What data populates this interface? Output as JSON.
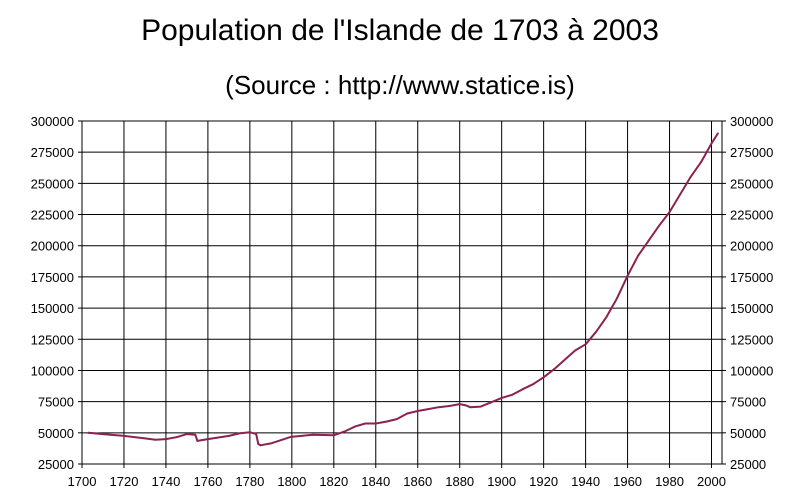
{
  "title": "Population de l'Islande de 1703 à 2003",
  "subtitle": "(Source : http://www.statice.is)",
  "chart_data": {
    "type": "line",
    "title": "Population de l'Islande de 1703 à 2003",
    "subtitle": "(Source : http://www.statice.is)",
    "xlabel": "",
    "ylabel": "",
    "xlim": [
      1700,
      2005
    ],
    "ylim": [
      25000,
      300000
    ],
    "x_ticks": [
      1700,
      1720,
      1740,
      1760,
      1780,
      1800,
      1820,
      1840,
      1860,
      1880,
      1900,
      1920,
      1940,
      1960,
      1980,
      2000
    ],
    "y_ticks": [
      25000,
      50000,
      75000,
      100000,
      125000,
      150000,
      175000,
      200000,
      225000,
      250000,
      275000,
      300000
    ],
    "grid": true,
    "legend": "none",
    "line_color": "#8b2252",
    "series": [
      {
        "x": [
          1703,
          1710,
          1720,
          1730,
          1735,
          1740,
          1745,
          1750,
          1754,
          1755,
          1760,
          1770,
          1775,
          1780,
          1783,
          1784,
          1785,
          1790,
          1800,
          1801,
          1810,
          1820,
          1825,
          1830,
          1835,
          1840,
          1845,
          1850,
          1855,
          1860,
          1865,
          1870,
          1875,
          1880,
          1883,
          1885,
          1890,
          1895,
          1900,
          1905,
          1910,
          1915,
          1920,
          1925,
          1930,
          1935,
          1940,
          1945,
          1950,
          1955,
          1960,
          1965,
          1970,
          1975,
          1980,
          1985,
          1990,
          1995,
          2000,
          2003
        ],
        "y": [
          50000,
          49000,
          47500,
          45500,
          44500,
          45000,
          46500,
          49000,
          48500,
          43500,
          45000,
          47500,
          49500,
          50500,
          49000,
          41000,
          40000,
          41500,
          47000,
          47000,
          48500,
          48000,
          51000,
          55000,
          57500,
          57500,
          59000,
          61000,
          65500,
          67500,
          69000,
          70500,
          71500,
          73000,
          72000,
          70500,
          71000,
          74500,
          78000,
          80500,
          85000,
          89000,
          94500,
          101000,
          108500,
          116000,
          121000,
          131000,
          143000,
          158000,
          176000,
          192000,
          204000,
          216000,
          227000,
          241000,
          255000,
          267000,
          282000,
          290000
        ]
      }
    ]
  }
}
